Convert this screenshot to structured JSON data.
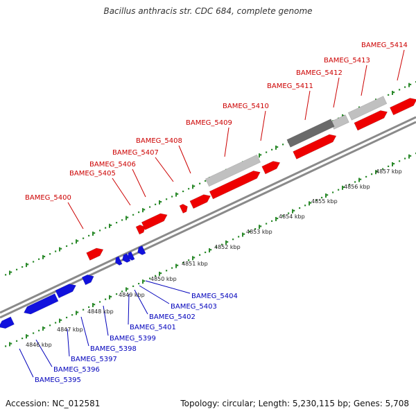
{
  "title": "Bacillus anthracis str. CDC 684, complete genome",
  "accession": "Accession: NC_012581",
  "summary": "Topology: circular; Length: 5,230,115 bp; Genes: 5,708",
  "colors": {
    "forward_gene": "#ee0000",
    "reverse_gene": "#1111dd",
    "other_feature_light": "#c0c0c0",
    "other_feature_dark": "#6a6a6a",
    "backbone": "#8a8a8a",
    "tick_marks": "#2b8a2b",
    "forward_label": "#cc0000",
    "reverse_label": "#0000bb"
  },
  "scale_labels": [
    "4846 kbp",
    "4847 kbp",
    "4848 kbp",
    "4849 kbp",
    "4850 kbp",
    "4851 kbp",
    "4852 kbp",
    "4853 kbp",
    "4854 kbp",
    "4855 kbp",
    "4856 kbp",
    "4857 kbp"
  ],
  "forward_genes": [
    "BAMEG_5400",
    "BAMEG_5405",
    "BAMEG_5406",
    "BAMEG_5407",
    "BAMEG_5408",
    "BAMEG_5409",
    "BAMEG_5410",
    "BAMEG_5411",
    "BAMEG_5412",
    "BAMEG_5413",
    "BAMEG_5414"
  ],
  "reverse_genes": [
    "BAMEG_5395",
    "BAMEG_5396",
    "BAMEG_5397",
    "BAMEG_5398",
    "BAMEG_5399",
    "BAMEG_5401",
    "BAMEG_5402",
    "BAMEG_5403",
    "BAMEG_5404"
  ]
}
